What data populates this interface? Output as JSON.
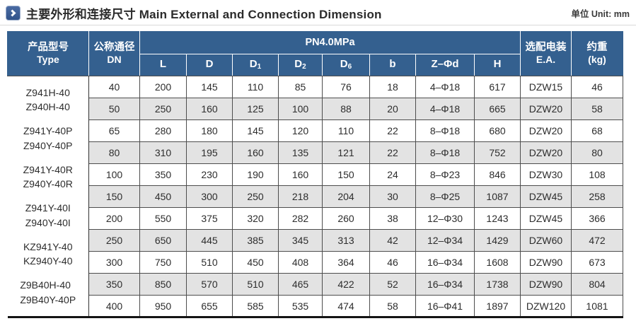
{
  "title": {
    "zh": "主要外形和连接尺寸",
    "en": "Main External and Connection Dimension",
    "full": "主要外形和连接尺寸 Main External and Connection Dimension",
    "unit": "单位 Unit: mm"
  },
  "colors": {
    "header_bg": "#34608f",
    "icon_bg": "#31538a",
    "alt_row_bg": "#e3e3e3",
    "grid_border": "#4d4d4d",
    "bottom_border": "#141414"
  },
  "icons": {
    "title_icon": "chevron-right-icon"
  },
  "table": {
    "pressure_header": "PN4.0MPa",
    "col_type": {
      "zh": "产品型号",
      "en": "Type"
    },
    "col_dn": {
      "zh": "公称通径",
      "en": "DN"
    },
    "col_ea": {
      "zh": "选配电装",
      "en": "E.A."
    },
    "col_weight": {
      "zh": "约重",
      "en": "(kg)"
    },
    "subcols": [
      {
        "base": "L",
        "sub": ""
      },
      {
        "base": "D",
        "sub": ""
      },
      {
        "base": "D",
        "sub": "1"
      },
      {
        "base": "D",
        "sub": "2"
      },
      {
        "base": "D",
        "sub": "6"
      },
      {
        "base": "b",
        "sub": ""
      },
      {
        "base": "Z–Φd",
        "sub": ""
      },
      {
        "base": "H",
        "sub": ""
      }
    ],
    "type_groups": [
      [
        "Z941H-40",
        "Z940H-40"
      ],
      [
        "Z941Y-40P",
        "Z940Y-40P"
      ],
      [
        "Z941Y-40R",
        "Z940Y-40R"
      ],
      [
        "Z941Y-40I",
        "Z940Y-40I"
      ],
      [
        "KZ941Y-40",
        "KZ940Y-40"
      ],
      [
        "Z9B40H-40",
        "Z9B40Y-40P"
      ]
    ],
    "rows": [
      [
        "40",
        "200",
        "145",
        "110",
        "85",
        "76",
        "18",
        "4–Φ18",
        "617",
        "DZW15",
        "46"
      ],
      [
        "50",
        "250",
        "160",
        "125",
        "100",
        "88",
        "20",
        "4–Φ18",
        "665",
        "DZW20",
        "58"
      ],
      [
        "65",
        "280",
        "180",
        "145",
        "120",
        "110",
        "22",
        "8–Φ18",
        "680",
        "DZW20",
        "68"
      ],
      [
        "80",
        "310",
        "195",
        "160",
        "135",
        "121",
        "22",
        "8–Φ18",
        "752",
        "DZW20",
        "80"
      ],
      [
        "100",
        "350",
        "230",
        "190",
        "160",
        "150",
        "24",
        "8–Φ23",
        "846",
        "DZW30",
        "108"
      ],
      [
        "150",
        "450",
        "300",
        "250",
        "218",
        "204",
        "30",
        "8–Φ25",
        "1087",
        "DZW45",
        "258"
      ],
      [
        "200",
        "550",
        "375",
        "320",
        "282",
        "260",
        "38",
        "12–Φ30",
        "1243",
        "DZW45",
        "366"
      ],
      [
        "250",
        "650",
        "445",
        "385",
        "345",
        "313",
        "42",
        "12–Φ34",
        "1429",
        "DZW60",
        "472"
      ],
      [
        "300",
        "750",
        "510",
        "450",
        "408",
        "364",
        "46",
        "16–Φ34",
        "1608",
        "DZW90",
        "673"
      ],
      [
        "350",
        "850",
        "570",
        "510",
        "465",
        "422",
        "52",
        "16–Φ34",
        "1738",
        "DZW90",
        "804"
      ],
      [
        "400",
        "950",
        "655",
        "585",
        "535",
        "474",
        "58",
        "16–Φ41",
        "1897",
        "DZW120",
        "1081"
      ]
    ]
  }
}
